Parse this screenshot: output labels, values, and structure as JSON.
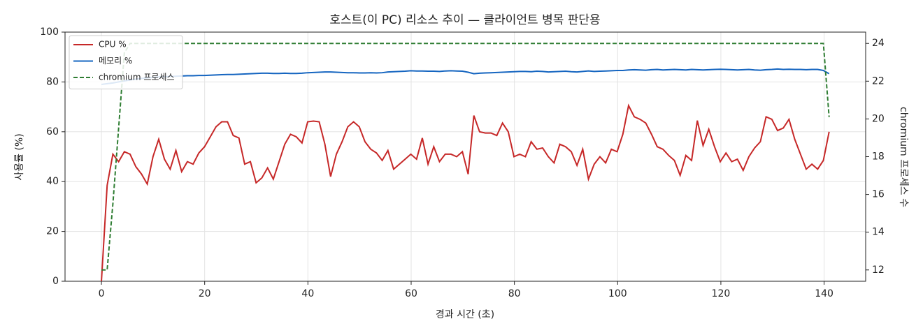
{
  "chart_data": {
    "type": "line",
    "title": "호스트(이 PC) 리소스 추이 — 클라이언트 병목 판단용",
    "xlabel": "경과 시간 (초)",
    "ylabel": "사용률 (%)",
    "y2label": "chromium 프로세스 수",
    "x": [
      0,
      1.11,
      2.22,
      3.33,
      4.44,
      5.55,
      6.66,
      7.77,
      8.88,
      9.99,
      11.1,
      12.21,
      13.32,
      14.43,
      15.54,
      16.65,
      17.76,
      18.87,
      19.98,
      21.09,
      22.2,
      23.31,
      24.42,
      25.53,
      26.64,
      27.75,
      28.86,
      29.97,
      31.08,
      32.19,
      33.3,
      34.41,
      35.52,
      36.63,
      37.74,
      38.85,
      39.96,
      41.07,
      42.18,
      43.29,
      44.4,
      45.51,
      46.62,
      47.73,
      48.84,
      49.95,
      51.06,
      52.17,
      53.28,
      54.39,
      55.5,
      56.61,
      57.72,
      58.83,
      59.94,
      61.05,
      62.16,
      63.27,
      64.38,
      65.49,
      66.6,
      67.71,
      68.82,
      69.93,
      71.04,
      72.15,
      73.26,
      74.37,
      75.48,
      76.59,
      77.7,
      78.81,
      79.92,
      81.03,
      82.14,
      83.25,
      84.36,
      85.47,
      86.58,
      87.69,
      88.8,
      89.91,
      91.02,
      92.13,
      93.24,
      94.35,
      95.46,
      96.57,
      97.68,
      98.79,
      99.9,
      101.01,
      102.12,
      103.23,
      104.34,
      105.45,
      106.56,
      107.67,
      108.78,
      109.89,
      111,
      112.11,
      113.22,
      114.33,
      115.44,
      116.55,
      117.66,
      118.77,
      119.88,
      120.99,
      122.1,
      123.21,
      124.32,
      125.43,
      126.54,
      127.65,
      128.76,
      129.87,
      130.98,
      132.09,
      133.2,
      134.31,
      135.42,
      136.53,
      137.64,
      138.75,
      139.86,
      140.97
    ],
    "series": [
      {
        "name": "CPU %",
        "color": "#c62828",
        "linestyle": "solid",
        "values": [
          0,
          38.5,
          51,
          48,
          52,
          51,
          46,
          43,
          39,
          50,
          57,
          49,
          45,
          52.5,
          44,
          48,
          47,
          51.5,
          54,
          58,
          62,
          64,
          64,
          58.5,
          57.5,
          47,
          48,
          39.5,
          41.5,
          45.5,
          41,
          48,
          55,
          59,
          58,
          55.5,
          64,
          64.3,
          64,
          55,
          42,
          51,
          56,
          62,
          64,
          62,
          56,
          53,
          51.5,
          48.5,
          52.5,
          45,
          47,
          49,
          51,
          49,
          57.5,
          47,
          54,
          48,
          51,
          51,
          50,
          52,
          43,
          66.5,
          60,
          59.5,
          59.5,
          58.5,
          63.5,
          60,
          50,
          51,
          50,
          56,
          53,
          53.5,
          50,
          47.5,
          55,
          54,
          52,
          46.5,
          53,
          41,
          47,
          50,
          47.5,
          53,
          52,
          59,
          70.5,
          66,
          65,
          63.5,
          59,
          54,
          53,
          50.5,
          48.5,
          42.5,
          50.5,
          48.5,
          64.5,
          54.5,
          61,
          54,
          48,
          51.5,
          48,
          49,
          44.5,
          50,
          53.5,
          56,
          66,
          65,
          60.5,
          61.5,
          65,
          57,
          51,
          45,
          47,
          45,
          48.5,
          60
        ]
      },
      {
        "name": "메모리 %",
        "color": "#1565c0",
        "linestyle": "solid",
        "values": [
          79,
          79.3,
          79.6,
          80,
          80.4,
          80.8,
          81.1,
          81.4,
          81.6,
          81.8,
          82,
          82.1,
          82.2,
          82.3,
          82.4,
          82.5,
          82.5,
          82.6,
          82.6,
          82.7,
          82.8,
          82.9,
          83,
          83,
          83.1,
          83.2,
          83.3,
          83.4,
          83.5,
          83.5,
          83.4,
          83.4,
          83.5,
          83.4,
          83.4,
          83.5,
          83.7,
          83.8,
          83.9,
          84,
          84,
          83.9,
          83.8,
          83.7,
          83.7,
          83.6,
          83.6,
          83.7,
          83.6,
          83.7,
          84,
          84.1,
          84.2,
          84.3,
          84.5,
          84.4,
          84.4,
          84.3,
          84.3,
          84.2,
          84.4,
          84.5,
          84.4,
          84.3,
          83.9,
          83.3,
          83.5,
          83.6,
          83.7,
          83.8,
          83.9,
          84,
          84.1,
          84.2,
          84.2,
          84.1,
          84.3,
          84.2,
          84,
          84.1,
          84.2,
          84.3,
          84.1,
          84,
          84.2,
          84.4,
          84.2,
          84.3,
          84.4,
          84.5,
          84.6,
          84.6,
          84.8,
          84.9,
          84.8,
          84.7,
          84.9,
          85,
          84.8,
          84.9,
          85,
          84.9,
          84.8,
          85,
          84.9,
          84.8,
          84.9,
          85,
          85.1,
          85,
          84.9,
          84.8,
          84.9,
          85,
          84.8,
          84.7,
          84.9,
          85,
          85.2,
          85,
          85.1,
          85,
          85,
          84.9,
          85,
          85,
          84.6,
          83.3
        ]
      },
      {
        "name": "chromium 프로세스",
        "color": "#2e7d32",
        "linestyle": "dashed",
        "axis": "y2",
        "values": [
          12,
          12,
          15.5,
          19.5,
          23.5,
          24,
          24,
          24,
          24,
          24,
          24,
          24,
          24,
          24,
          24,
          24,
          24,
          24,
          24,
          24,
          24,
          24,
          24,
          24,
          24,
          24,
          24,
          24,
          24,
          24,
          24,
          24,
          24,
          24,
          24,
          24,
          24,
          24,
          24,
          24,
          24,
          24,
          24,
          24,
          24,
          24,
          24,
          24,
          24,
          24,
          24,
          24,
          24,
          24,
          24,
          24,
          24,
          24,
          24,
          24,
          24,
          24,
          24,
          24,
          24,
          24,
          24,
          24,
          24,
          24,
          24,
          24,
          24,
          24,
          24,
          24,
          24,
          24,
          24,
          24,
          24,
          24,
          24,
          24,
          24,
          24,
          24,
          24,
          24,
          24,
          24,
          24,
          24,
          24,
          24,
          24,
          24,
          24,
          24,
          24,
          24,
          24,
          24,
          24,
          24,
          24,
          24,
          24,
          24,
          24,
          24,
          24,
          24,
          24,
          24,
          24,
          24,
          24,
          24,
          24,
          24,
          24,
          24,
          24,
          24,
          24,
          24,
          20.1
        ]
      }
    ],
    "xlim": [
      -7.05,
      148.05
    ],
    "ylim": [
      0,
      100
    ],
    "y2lim": [
      11.4,
      24.6
    ],
    "xticks": [
      0,
      20,
      40,
      60,
      80,
      100,
      120,
      140
    ],
    "yticks": [
      0,
      20,
      40,
      60,
      80,
      100
    ],
    "y2ticks": [
      12,
      14,
      16,
      18,
      20,
      22,
      24
    ],
    "grid": true,
    "legend": "upper left"
  }
}
